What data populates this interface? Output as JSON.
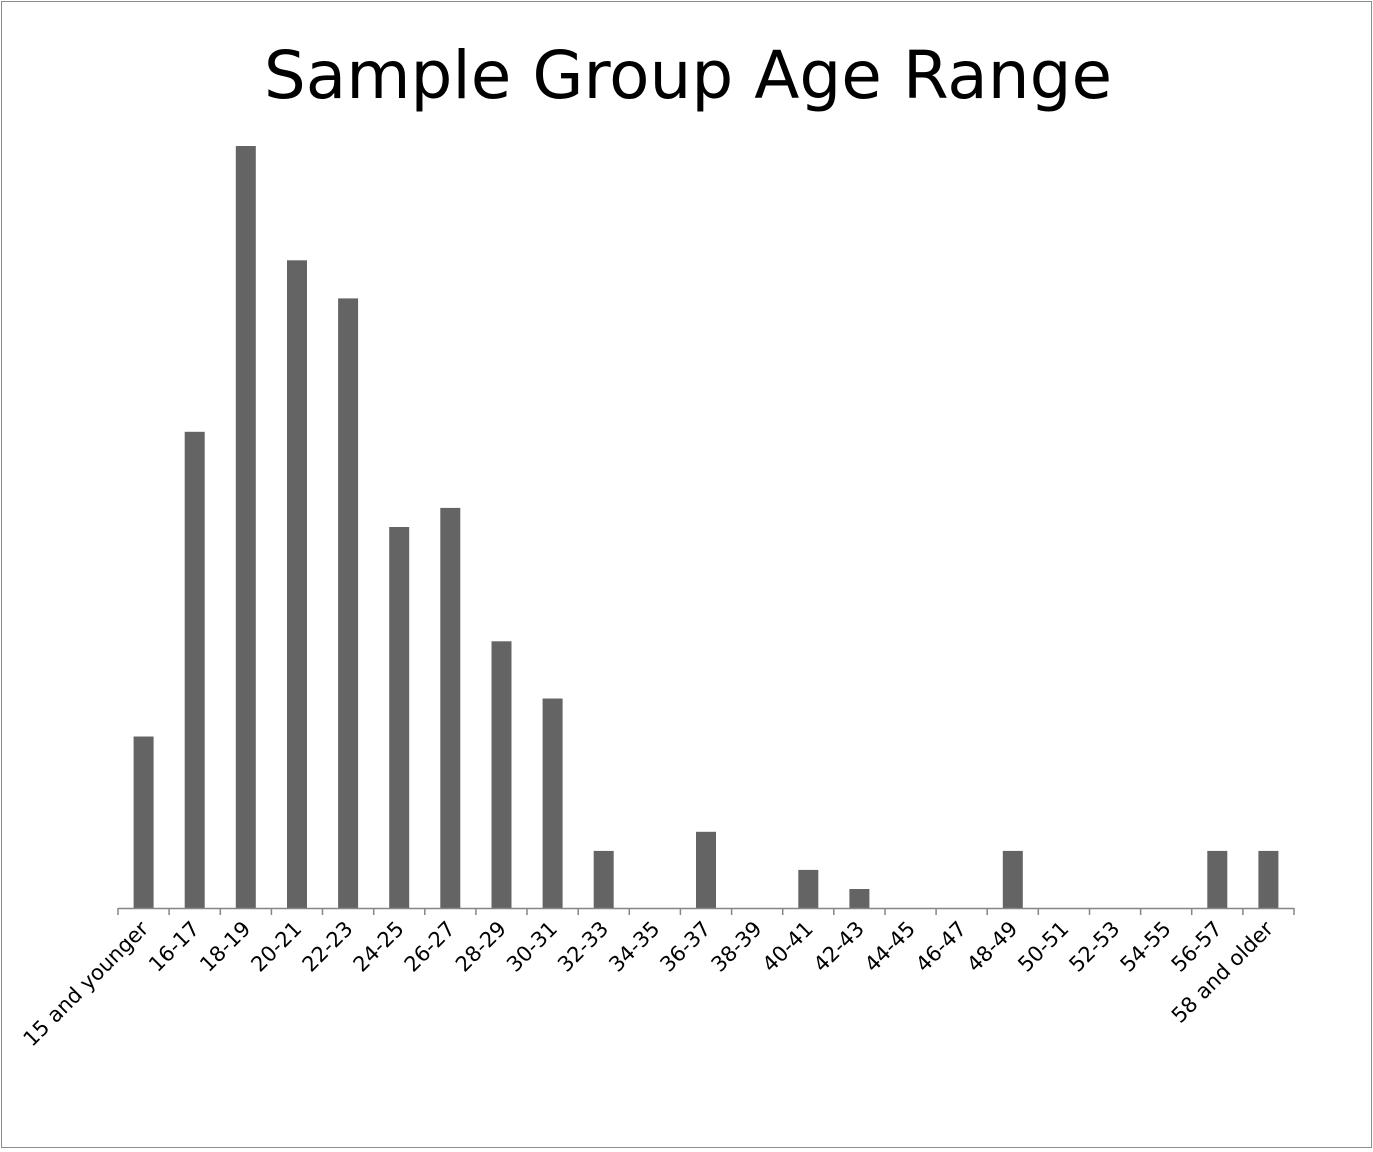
{
  "chart_data": {
    "type": "bar",
    "title": "Sample Group Age Range",
    "xlabel": "",
    "ylabel": "",
    "categories": [
      "15 and younger",
      "16-17",
      "18-19",
      "20-21",
      "22-23",
      "24-25",
      "26-27",
      "28-29",
      "30-31",
      "32-33",
      "34-35",
      "36-37",
      "38-39",
      "40-41",
      "42-43",
      "44-45",
      "46-47",
      "48-49",
      "50-51",
      "52-53",
      "54-55",
      "56-57",
      "58 and older"
    ],
    "values": [
      9,
      25,
      40,
      34,
      32,
      20,
      21,
      14,
      11,
      3,
      0,
      4,
      0,
      2,
      1,
      0,
      0,
      3,
      0,
      0,
      0,
      3,
      3
    ],
    "ylim": [
      0,
      40
    ],
    "grid": false,
    "legend": "none",
    "bar_color": "#646464",
    "axis_color": "#868686"
  }
}
